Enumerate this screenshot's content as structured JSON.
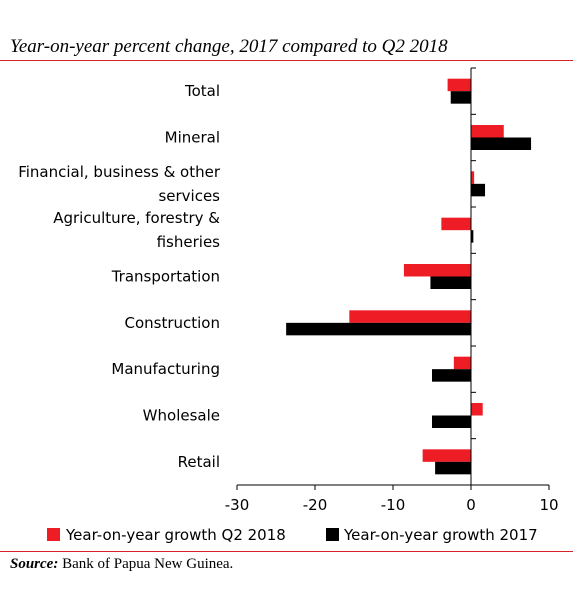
{
  "title": "Year-on-year percent change, 2017 compared to Q2 2018",
  "source": {
    "label": "Source:",
    "text": "Bank of Papua New Guinea."
  },
  "chart_data": {
    "type": "bar",
    "orientation": "horizontal",
    "categories": [
      "Total",
      "Mineral",
      "Financial, business & other services",
      "Agriculture, forestry & fisheries",
      "Transportation",
      "Construction",
      "Manufacturing",
      "Wholesale",
      "Retail"
    ],
    "category_lines": [
      [
        "Total"
      ],
      [
        "Mineral"
      ],
      [
        "Financial, business & other",
        "services"
      ],
      [
        "Agriculture, forestry &",
        "fisheries"
      ],
      [
        "Transportation"
      ],
      [
        "Construction"
      ],
      [
        "Manufacturing"
      ],
      [
        "Wholesale"
      ],
      [
        "Retail"
      ]
    ],
    "series": [
      {
        "name": "Year-on-year growth Q2 2018",
        "color": "#ee1c25",
        "values": [
          -3.0,
          4.2,
          0.4,
          -3.8,
          -8.6,
          -15.6,
          -2.2,
          1.5,
          -6.2
        ]
      },
      {
        "name": "Year-on-year growth 2017",
        "color": "#000000",
        "values": [
          -2.6,
          7.7,
          1.8,
          0.3,
          -5.2,
          -23.7,
          -5.0,
          -5.0,
          -4.6
        ]
      }
    ],
    "xlim": [
      -30,
      10
    ],
    "xticks": [
      -30,
      -20,
      -10,
      0,
      10
    ],
    "xtick_labels": [
      "-30",
      "-20",
      "-10",
      "0",
      "10"
    ],
    "xlabel": "",
    "ylabel": "",
    "grid": false,
    "legend": "bottom"
  }
}
